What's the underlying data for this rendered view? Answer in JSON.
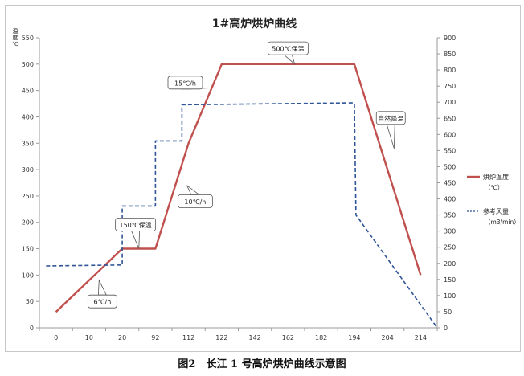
{
  "chart_data": {
    "type": "line",
    "title": "1#高炉烘炉曲线",
    "ylabel_left": "温度℃",
    "categories": [
      "0",
      "10",
      "20",
      "92",
      "112",
      "122",
      "142",
      "162",
      "182",
      "194",
      "204",
      "214"
    ],
    "ylim_left": [
      0,
      550
    ],
    "yticks_left": [
      0,
      50,
      100,
      150,
      200,
      250,
      300,
      350,
      400,
      450,
      500,
      550
    ],
    "ylim_right": [
      0,
      900
    ],
    "yticks_right": [
      0,
      50,
      100,
      150,
      200,
      250,
      300,
      350,
      400,
      450,
      500,
      550,
      600,
      650,
      700,
      750,
      800,
      850,
      900
    ],
    "grid": false,
    "legend_position": "right",
    "series": [
      {
        "name": "烘炉温度",
        "unit": "（℃）",
        "axis": "left",
        "color": "#c0504d",
        "style": "solid",
        "points": [
          [
            0,
            30
          ],
          [
            2,
            150
          ],
          [
            3,
            150
          ],
          [
            4,
            350
          ],
          [
            5,
            500
          ],
          [
            9,
            500
          ],
          [
            11,
            100
          ]
        ]
      },
      {
        "name": "参考风量",
        "unit": "（m3/min）",
        "axis": "right",
        "color": "#2f5597",
        "style": "dashed",
        "points": [
          [
            -0.3,
            192
          ],
          [
            2,
            195
          ],
          [
            2,
            378
          ],
          [
            3,
            378
          ],
          [
            3,
            580
          ],
          [
            3.8,
            580
          ],
          [
            3.8,
            692
          ],
          [
            9,
            698
          ],
          [
            9.05,
            350
          ],
          [
            11.5,
            0
          ]
        ]
      }
    ],
    "annotations": [
      {
        "text": "6℃/h",
        "x": 1.4,
        "y": 50,
        "pointer": [
          1.3,
          90
        ],
        "axis": "left"
      },
      {
        "text": "150℃保温",
        "x": 2.4,
        "y": 196,
        "pointer": [
          2.5,
          150
        ],
        "axis": "left"
      },
      {
        "text": "10℃/h",
        "x": 4.2,
        "y": 240,
        "pointer": [
          3.95,
          270
        ],
        "axis": "left"
      },
      {
        "text": "15℃/h",
        "x": 3.9,
        "y": 465,
        "pointer": [
          4.75,
          455
        ],
        "axis": "left"
      },
      {
        "text": "500℃保温",
        "x": 7.0,
        "y": 530,
        "pointer": [
          7.2,
          500
        ],
        "axis": "left"
      },
      {
        "text": "自然降温",
        "x": 10.1,
        "y": 398,
        "pointer": [
          10.2,
          340
        ],
        "axis": "left"
      }
    ]
  },
  "caption": "图2　长江 1 号高炉烘炉曲线示意图"
}
